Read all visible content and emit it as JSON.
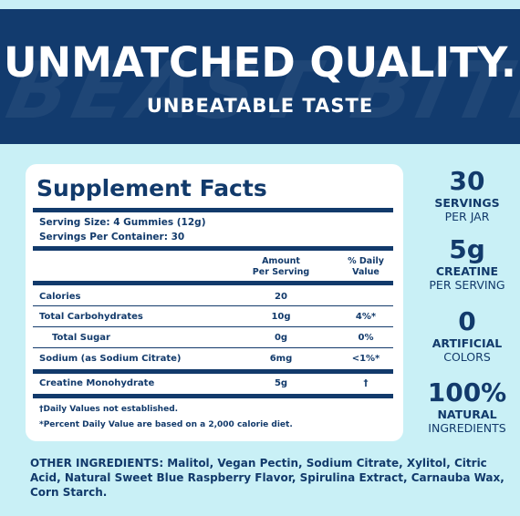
{
  "header": {
    "watermark": "BEAST BITE",
    "headline": "UNMATCHED QUALITY.",
    "subline": "UNBEATABLE TASTE"
  },
  "facts": {
    "title": "Supplement Facts",
    "serving_size": "Serving Size: 4 Gummies (12g)",
    "servings_per_container": "Servings Per Container: 30",
    "col_amount_1": "Amount",
    "col_amount_2": "Per Serving",
    "col_dv_1": "% Daily",
    "col_dv_2": "Value",
    "rows": [
      {
        "label": "Calories",
        "amount": "20",
        "dv": ""
      },
      {
        "label": "Total Carbohydrates",
        "amount": "10g",
        "dv": "4%*"
      },
      {
        "label": "Total Sugar",
        "amount": "0g",
        "dv": "0%"
      },
      {
        "label": "Sodium (as Sodium Citrate)",
        "amount": "6mg",
        "dv": "<1%*"
      },
      {
        "label": "Creatine Monohydrate",
        "amount": "5g",
        "dv": "†"
      }
    ],
    "footnote_1": "†Daily Values not established.",
    "footnote_2": "*Percent Daily Value are based on a 2,000 calorie diet."
  },
  "stats": [
    {
      "num": "30",
      "line1": "SERVINGS",
      "line2": "PER JAR"
    },
    {
      "num": "5g",
      "line1": "CREATINE",
      "line2": "PER SERVING"
    },
    {
      "num": "0",
      "line1": "ARTIFICIAL",
      "line2": "COLORS"
    },
    {
      "num": "100%",
      "line1": "NATURAL",
      "line2": "INGREDIENTS"
    }
  ],
  "other_ingredients": "OTHER INGREDIENTS: Malitol, Vegan Pectin, Sodium Citrate, Xylitol, Citric Acid, Natural Sweet Blue Raspberry Flavor, Spirulina Extract, Carnauba Wax, Corn Starch.",
  "colors": {
    "navy": "#123b6e",
    "background": "#c9f0f6",
    "card": "#ffffff"
  }
}
